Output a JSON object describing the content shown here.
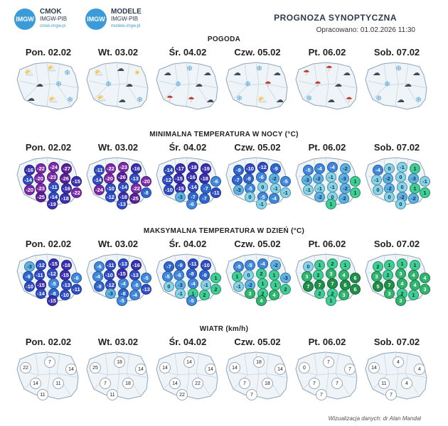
{
  "header": {
    "logo1": {
      "badge": "IMGW",
      "title": "CMOK",
      "sub": "IMGW-PIB",
      "url": "cmok.imgw.pl"
    },
    "logo2": {
      "badge": "IMGW",
      "title": "MODELE",
      "sub": "IMGW-PIB",
      "url": "modele.imgw.pl"
    },
    "title": "PROGNOZA SYNOPTYCZNA",
    "prepared": "Opracowano: 01.02.2026 11:30"
  },
  "days": [
    "Pon. 02.02",
    "Wt. 03.02",
    "Śr. 04.02",
    "Czw. 05.02",
    "Pt. 06.02",
    "Sob. 07.02"
  ],
  "sections": {
    "weather": "POGODA",
    "tmin": "MINIMALNA TEMPERATURA W NOCY (°C)",
    "tmax": "MAKSYMALNA TEMPERATURA W DZIEŃ (°C)",
    "wind": "WIATR (km/h)"
  },
  "weather_icons": [
    [
      "sun-cloud-icon",
      "sun-cloud-icon",
      "snow-cloud-icon",
      "cloud-icon",
      "snow-cloud-icon",
      "cloud-icon",
      "sun-cloud-icon",
      "snow-cloud-icon"
    ],
    [
      "sun-cloud-icon",
      "cloud-icon",
      "sun-icon",
      "snow-cloud-icon",
      "cloud-icon",
      "sun-cloud-icon",
      "cloud-icon",
      "snow-cloud-icon"
    ],
    [
      "cloud-icon",
      "snow-cloud-icon",
      "cloud-icon",
      "snow-cloud-icon",
      "cloud-icon",
      "rain-cloud-icon",
      "rain-cloud-icon",
      "cloud-icon"
    ],
    [
      "cloud-icon",
      "snow-cloud-icon",
      "cloud-icon",
      "snow-cloud-icon",
      "rain-cloud-icon",
      "snow-cloud-icon",
      "sun-cloud-icon",
      "cloud-icon"
    ],
    [
      "rain-cloud-icon",
      "rain-cloud-icon",
      "cloud-icon",
      "rain-cloud-icon",
      "cloud-icon",
      "snow-cloud-icon",
      "cloud-icon",
      "rain-cloud-icon"
    ],
    [
      "cloud-icon",
      "snow-cloud-icon",
      "cloud-icon",
      "snow-cloud-icon",
      "cloud-icon",
      "snow-cloud-icon",
      "cloud-icon",
      "snow-cloud-icon"
    ]
  ],
  "tmin": [
    [
      -16,
      -22,
      -24,
      -27,
      -14,
      -20,
      -23,
      -26,
      -15,
      -20,
      -23,
      -11,
      -16,
      -22,
      -25,
      -14,
      -18,
      -19
    ],
    [
      -11,
      -22,
      -23,
      -16,
      -14,
      -20,
      -26,
      -13,
      -20,
      -24,
      -10,
      -14,
      -22,
      -8,
      -12,
      -18,
      -25,
      -13
    ],
    [
      -14,
      -17,
      -18,
      -19,
      -12,
      -15,
      -16,
      -18,
      -6,
      -10,
      -15,
      -14,
      -7,
      -11,
      -3,
      -7,
      -7,
      -6
    ],
    [
      -9,
      -10,
      -12,
      -9,
      -7,
      -8,
      -6,
      -2,
      -5,
      -3,
      -5,
      0,
      -1,
      -1,
      0,
      -5,
      -4,
      -1
    ],
    [
      -5,
      -4,
      -4,
      -2,
      -3,
      -2,
      -1,
      -3,
      1,
      -1,
      -1,
      -1,
      -2,
      1,
      -2,
      0,
      -2,
      1
    ],
    [
      -4,
      0,
      -1,
      1,
      -1,
      -2,
      0,
      -3,
      -1,
      0,
      -2,
      0,
      1,
      1,
      0,
      -2,
      -2,
      0
    ]
  ],
  "tmax": [
    [
      -3,
      -12,
      -15,
      -18,
      -9,
      -11,
      -12,
      -15,
      -6,
      -10,
      -15,
      -5,
      -13,
      -11,
      -14,
      -8,
      -10,
      -15
    ],
    [
      -6,
      -11,
      -13,
      -16,
      -4,
      -10,
      -15,
      -13,
      -5,
      -9,
      -12,
      -4,
      -6,
      -13,
      -3,
      -8,
      -4,
      -5
    ],
    [
      -7,
      -9,
      -11,
      -10,
      -5,
      -6,
      -8,
      -9,
      1,
      0,
      -3,
      -4,
      -1,
      2,
      -1,
      1,
      2,
      -5
    ],
    [
      -5,
      -5,
      -4,
      -2,
      1,
      0,
      2,
      1,
      -3,
      -1,
      -2,
      1,
      1,
      2,
      3,
      2,
      4,
      4
    ],
    [
      0,
      1,
      2,
      1,
      3,
      2,
      3,
      4,
      6,
      7,
      7,
      7,
      6,
      6,
      2,
      2,
      3,
      1
    ],
    [
      2,
      1,
      1,
      1,
      3,
      2,
      3,
      4,
      4,
      5,
      7,
      4,
      4,
      3,
      3,
      2,
      1,
      3
    ]
  ],
  "wind": [
    [
      22,
      7,
      14,
      14,
      11,
      11
    ],
    [
      25,
      18,
      14,
      7,
      18,
      11
    ],
    [
      14,
      14,
      14,
      14,
      22,
      22
    ],
    [
      14,
      18,
      14,
      7,
      18,
      7
    ],
    [
      0,
      7,
      7,
      7,
      7,
      7
    ],
    [
      14,
      4,
      4,
      11,
      4,
      7
    ]
  ],
  "credit": "Wizualizacja danych: dr Alan Mandal"
}
